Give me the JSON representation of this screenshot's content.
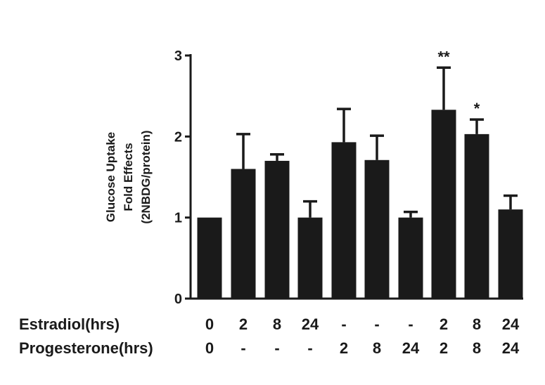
{
  "chart_data": {
    "type": "bar",
    "ylabel_lines": [
      "Glucose Uptake",
      "Fold Effects",
      "(2NBDG/protein)"
    ],
    "ylim": [
      0,
      3
    ],
    "yticks": [
      "0",
      "1",
      "2",
      "3"
    ],
    "values": [
      1.0,
      1.6,
      1.7,
      1.0,
      1.93,
      1.71,
      1.0,
      2.33,
      2.03,
      1.1
    ],
    "errors": [
      0.0,
      0.43,
      0.08,
      0.2,
      0.41,
      0.3,
      0.07,
      0.52,
      0.18,
      0.17
    ],
    "annotations": [
      "",
      "",
      "",
      "",
      "",
      "",
      "",
      "**",
      "*",
      ""
    ],
    "bar_color": "#1a1a1a",
    "grid": false,
    "legend": "none",
    "conditions": [
      {
        "label": "Estradiol(hrs)",
        "values": [
          "0",
          "2",
          "8",
          "24",
          "-",
          "-",
          "-",
          "2",
          "8",
          "24"
        ]
      },
      {
        "label": "Progesterone(hrs)",
        "values": [
          "0",
          "-",
          "-",
          "-",
          "2",
          "8",
          "24",
          "2",
          "8",
          "24"
        ]
      }
    ]
  }
}
